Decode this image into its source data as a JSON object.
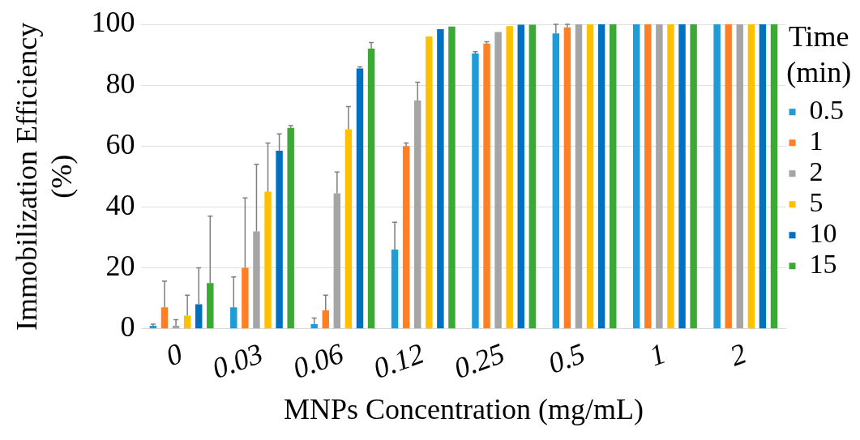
{
  "chart_data": {
    "type": "bar",
    "xlabel": "MNPs Concentration (mg/mL)",
    "ylabel": "Immobilization Efficiency (%)",
    "legend_title": "Time (min)",
    "categories": [
      "0",
      "0.03",
      "0.06",
      "0.12",
      "0.25",
      "0.5",
      "1",
      "2"
    ],
    "ylim": [
      0,
      100
    ],
    "yticks": [
      0,
      20,
      40,
      60,
      80,
      100
    ],
    "grid": "y",
    "legend": "right",
    "series": [
      {
        "name": "0.5",
        "color": "#1f9bd7",
        "values": [
          1,
          7,
          1.5,
          26,
          90.4,
          97,
          100,
          100
        ],
        "errors": [
          [
            1,
            1.5
          ],
          [
            7,
            17
          ],
          [
            1.5,
            3.5
          ],
          [
            26,
            35
          ],
          [
            90.4,
            91
          ],
          [
            97,
            100
          ],
          null,
          null
        ]
      },
      {
        "name": "1",
        "color": "#ff7f27",
        "values": [
          7,
          20,
          6,
          60,
          93.7,
          99,
          100,
          100
        ],
        "errors": [
          [
            7,
            15.6
          ],
          [
            20,
            43
          ],
          [
            6,
            11
          ],
          [
            60,
            61
          ],
          [
            93.7,
            94.3
          ],
          [
            99,
            100
          ],
          null,
          null
        ]
      },
      {
        "name": "2",
        "color": "#a5a5a5",
        "values": [
          1,
          32,
          44.5,
          75,
          97.5,
          100,
          100,
          100
        ],
        "errors": [
          [
            1,
            3
          ],
          [
            32,
            54
          ],
          [
            44.5,
            51.5
          ],
          [
            75,
            81
          ],
          null,
          null,
          null,
          null
        ]
      },
      {
        "name": "5",
        "color": "#ffc000",
        "values": [
          4.3,
          45,
          65.5,
          96,
          99.4,
          100,
          100,
          100
        ],
        "errors": [
          [
            4.3,
            11
          ],
          [
            45,
            61
          ],
          [
            65.5,
            73
          ],
          null,
          null,
          null,
          null,
          null
        ]
      },
      {
        "name": "10",
        "color": "#0070c0",
        "values": [
          8,
          58.5,
          85.5,
          98.4,
          99.9,
          100,
          100,
          100
        ],
        "errors": [
          [
            8,
            20
          ],
          [
            58.5,
            64
          ],
          [
            85.5,
            86
          ],
          null,
          null,
          null,
          null,
          null
        ]
      },
      {
        "name": "15",
        "color": "#3aaa35",
        "values": [
          15,
          66,
          92,
          99.3,
          99.9,
          100,
          100,
          100
        ],
        "errors": [
          [
            15,
            37
          ],
          [
            66,
            66.7
          ],
          [
            92,
            94
          ],
          null,
          null,
          null,
          null,
          null
        ]
      }
    ]
  }
}
